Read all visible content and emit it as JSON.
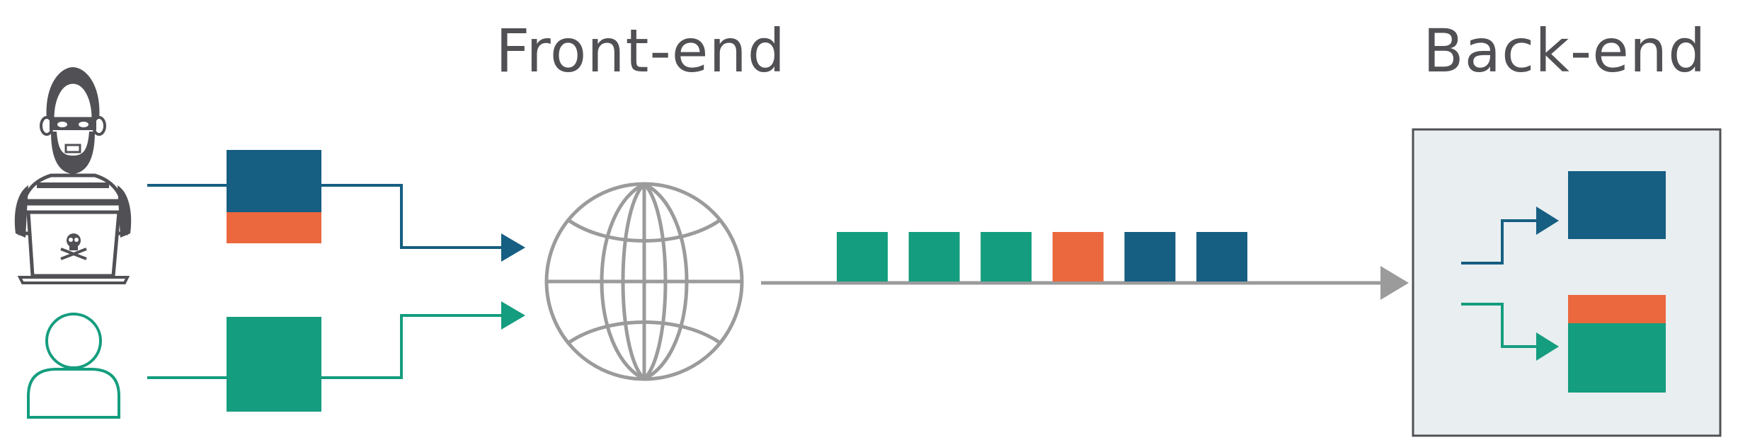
{
  "headings": {
    "front_end": "Front-end",
    "back_end": "Back-end"
  },
  "colors": {
    "navy": "#165e82",
    "orange": "#eb683f",
    "teal": "#149d7e",
    "grey": "#9b9b9b",
    "dark": "#505055",
    "backend_bg": "#e9eef0",
    "backend_border": "#505055"
  },
  "icons": {
    "attacker": "hacker-with-laptop-icon",
    "user": "user-icon",
    "network": "globe-icon",
    "skull": "skull-crossbones-icon"
  },
  "packet_stream": [
    "teal",
    "teal",
    "teal",
    "orange",
    "navy",
    "navy"
  ],
  "attacker_request": [
    "navy",
    "orange"
  ],
  "user_request": [
    "teal"
  ],
  "backend_requests": [
    [
      "navy"
    ],
    [
      "orange",
      "teal"
    ]
  ]
}
